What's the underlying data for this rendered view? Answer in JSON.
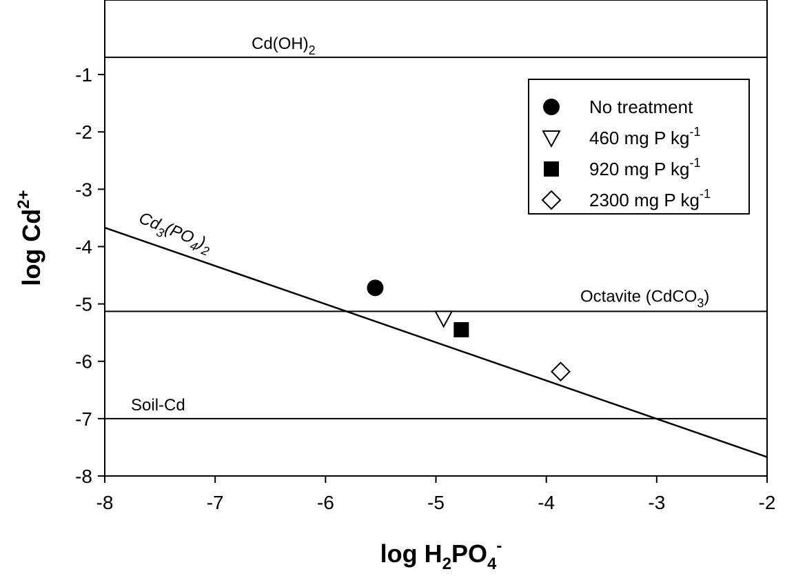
{
  "chart_data": {
    "type": "scatter",
    "xlabel": {
      "main": "log H",
      "sub": "2",
      "main2": "PO",
      "sub2": "4",
      "sup": "-"
    },
    "ylabel": {
      "main": "log Cd",
      "sup": "2+"
    },
    "xlim": [
      -8,
      -2
    ],
    "ylim": [
      -8,
      0.3
    ],
    "xticks": [
      -8,
      -7,
      -6,
      -5,
      -4,
      -3,
      -2
    ],
    "yticks": [
      -8,
      -7,
      -6,
      -5,
      -4,
      -3,
      -2,
      -1
    ],
    "xtick_labels": [
      "-8",
      "-7",
      "-6",
      "-5",
      "-4",
      "-3",
      "-2"
    ],
    "ytick_labels": [
      "-8",
      "-7",
      "-6",
      "-5",
      "-4",
      "-3",
      "-2",
      "-1"
    ],
    "reference_lines": [
      {
        "label": "Cd(OH)",
        "sub": "2",
        "tail": "",
        "kind": "horizontal",
        "y": -0.7
      },
      {
        "label": "Octavite (CdCO",
        "sub": "3",
        "tail": ")",
        "kind": "horizontal",
        "y": -5.13
      },
      {
        "label": "Soil-Cd",
        "sub": "",
        "tail": "",
        "kind": "horizontal",
        "y": -7.0
      },
      {
        "label": "Cd",
        "sub": "3",
        "mid": "(PO",
        "sub2": "4",
        "tail": ")",
        "sub3": "2",
        "kind": "sloped",
        "x": [
          -8,
          -2
        ],
        "y": [
          -3.67,
          -7.67
        ]
      }
    ],
    "series": [
      {
        "name": "No treatment",
        "marker": "filled-circle",
        "x": [
          -5.55
        ],
        "y": [
          -4.72
        ]
      },
      {
        "name": "460 mg P kg",
        "sup": "-1",
        "marker": "open-triangle-down",
        "x": [
          -4.93
        ],
        "y": [
          -5.25
        ]
      },
      {
        "name": "920 mg P kg",
        "sup": "-1",
        "marker": "filled-square",
        "x": [
          -4.77
        ],
        "y": [
          -5.45
        ]
      },
      {
        "name": "2300 mg P kg",
        "sup": "-1",
        "marker": "open-diamond",
        "x": [
          -3.87
        ],
        "y": [
          -6.18
        ]
      }
    ],
    "legend_position": "top-right",
    "grid": false,
    "colors": {
      "line": "#000000",
      "marker": "#000000",
      "fill_open": "#ffffff"
    }
  }
}
